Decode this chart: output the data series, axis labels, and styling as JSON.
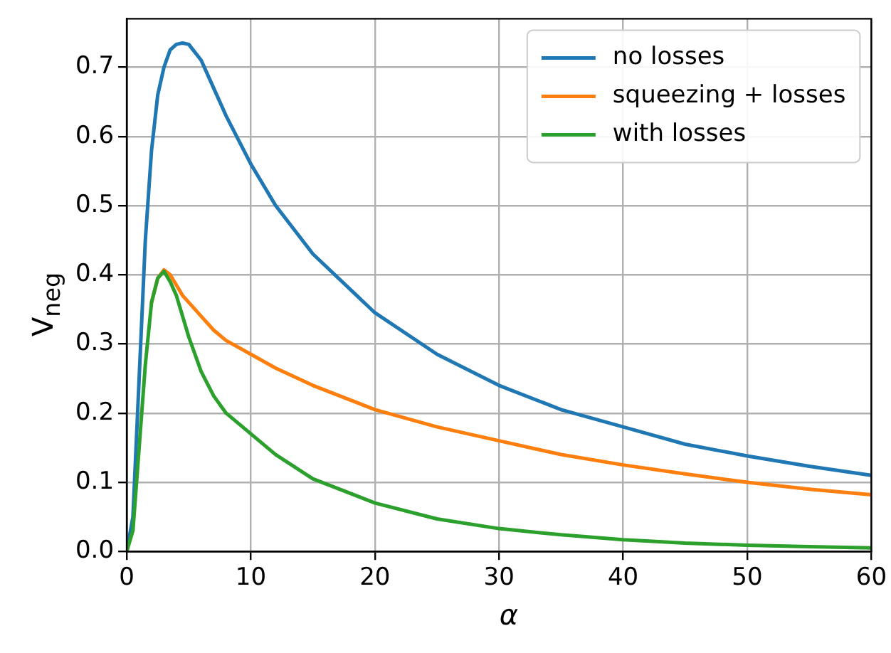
{
  "chart_data": {
    "type": "line",
    "xlabel": "α",
    "ylabel": "V$_{neg}$",
    "x": [
      0,
      0.5,
      1,
      1.5,
      2,
      2.5,
      3,
      3.5,
      4,
      4.5,
      5,
      6,
      7,
      8,
      10,
      12,
      15,
      20,
      25,
      30,
      35,
      40,
      45,
      50,
      55,
      60
    ],
    "series": [
      {
        "name": "no losses",
        "color": "#1f77b4",
        "values": [
          0,
          0.05,
          0.25,
          0.45,
          0.58,
          0.66,
          0.7,
          0.725,
          0.733,
          0.735,
          0.733,
          0.71,
          0.67,
          0.63,
          0.56,
          0.5,
          0.43,
          0.345,
          0.285,
          0.24,
          0.205,
          0.18,
          0.155,
          0.138,
          0.123,
          0.11
        ]
      },
      {
        "name": "squeezing + losses",
        "color": "#ff7f0e",
        "values": [
          null,
          null,
          null,
          null,
          0.36,
          0.395,
          0.407,
          0.4,
          0.385,
          0.37,
          0.36,
          0.34,
          0.32,
          0.305,
          0.285,
          0.265,
          0.24,
          0.205,
          0.18,
          0.16,
          0.14,
          0.125,
          0.112,
          0.1,
          0.09,
          0.082
        ]
      },
      {
        "name": "with losses",
        "color": "#2ca02c",
        "values": [
          0,
          0.03,
          0.15,
          0.27,
          0.36,
          0.395,
          0.405,
          0.39,
          0.37,
          0.34,
          0.31,
          0.26,
          0.225,
          0.2,
          0.17,
          0.14,
          0.105,
          0.07,
          0.047,
          0.033,
          0.024,
          0.017,
          0.012,
          0.009,
          0.007,
          0.005
        ]
      }
    ],
    "xlim": [
      0,
      60
    ],
    "xticks": [
      0,
      10,
      20,
      30,
      40,
      50,
      60
    ],
    "ylim": [
      0,
      0.77
    ],
    "yticks": [
      {
        "value": 0,
        "label": "0.0"
      },
      {
        "value": 0.1,
        "label": "0.1"
      },
      {
        "value": 0.2,
        "label": "0.2"
      },
      {
        "value": 0.3,
        "label": "0.3"
      },
      {
        "value": 0.4,
        "label": "0.4"
      },
      {
        "value": 0.5,
        "label": "0.5"
      },
      {
        "value": 0.6,
        "label": "0.6"
      },
      {
        "value": 0.7,
        "label": "0.7"
      }
    ],
    "grid": true,
    "legend": "top right",
    "line_style": "solid"
  }
}
